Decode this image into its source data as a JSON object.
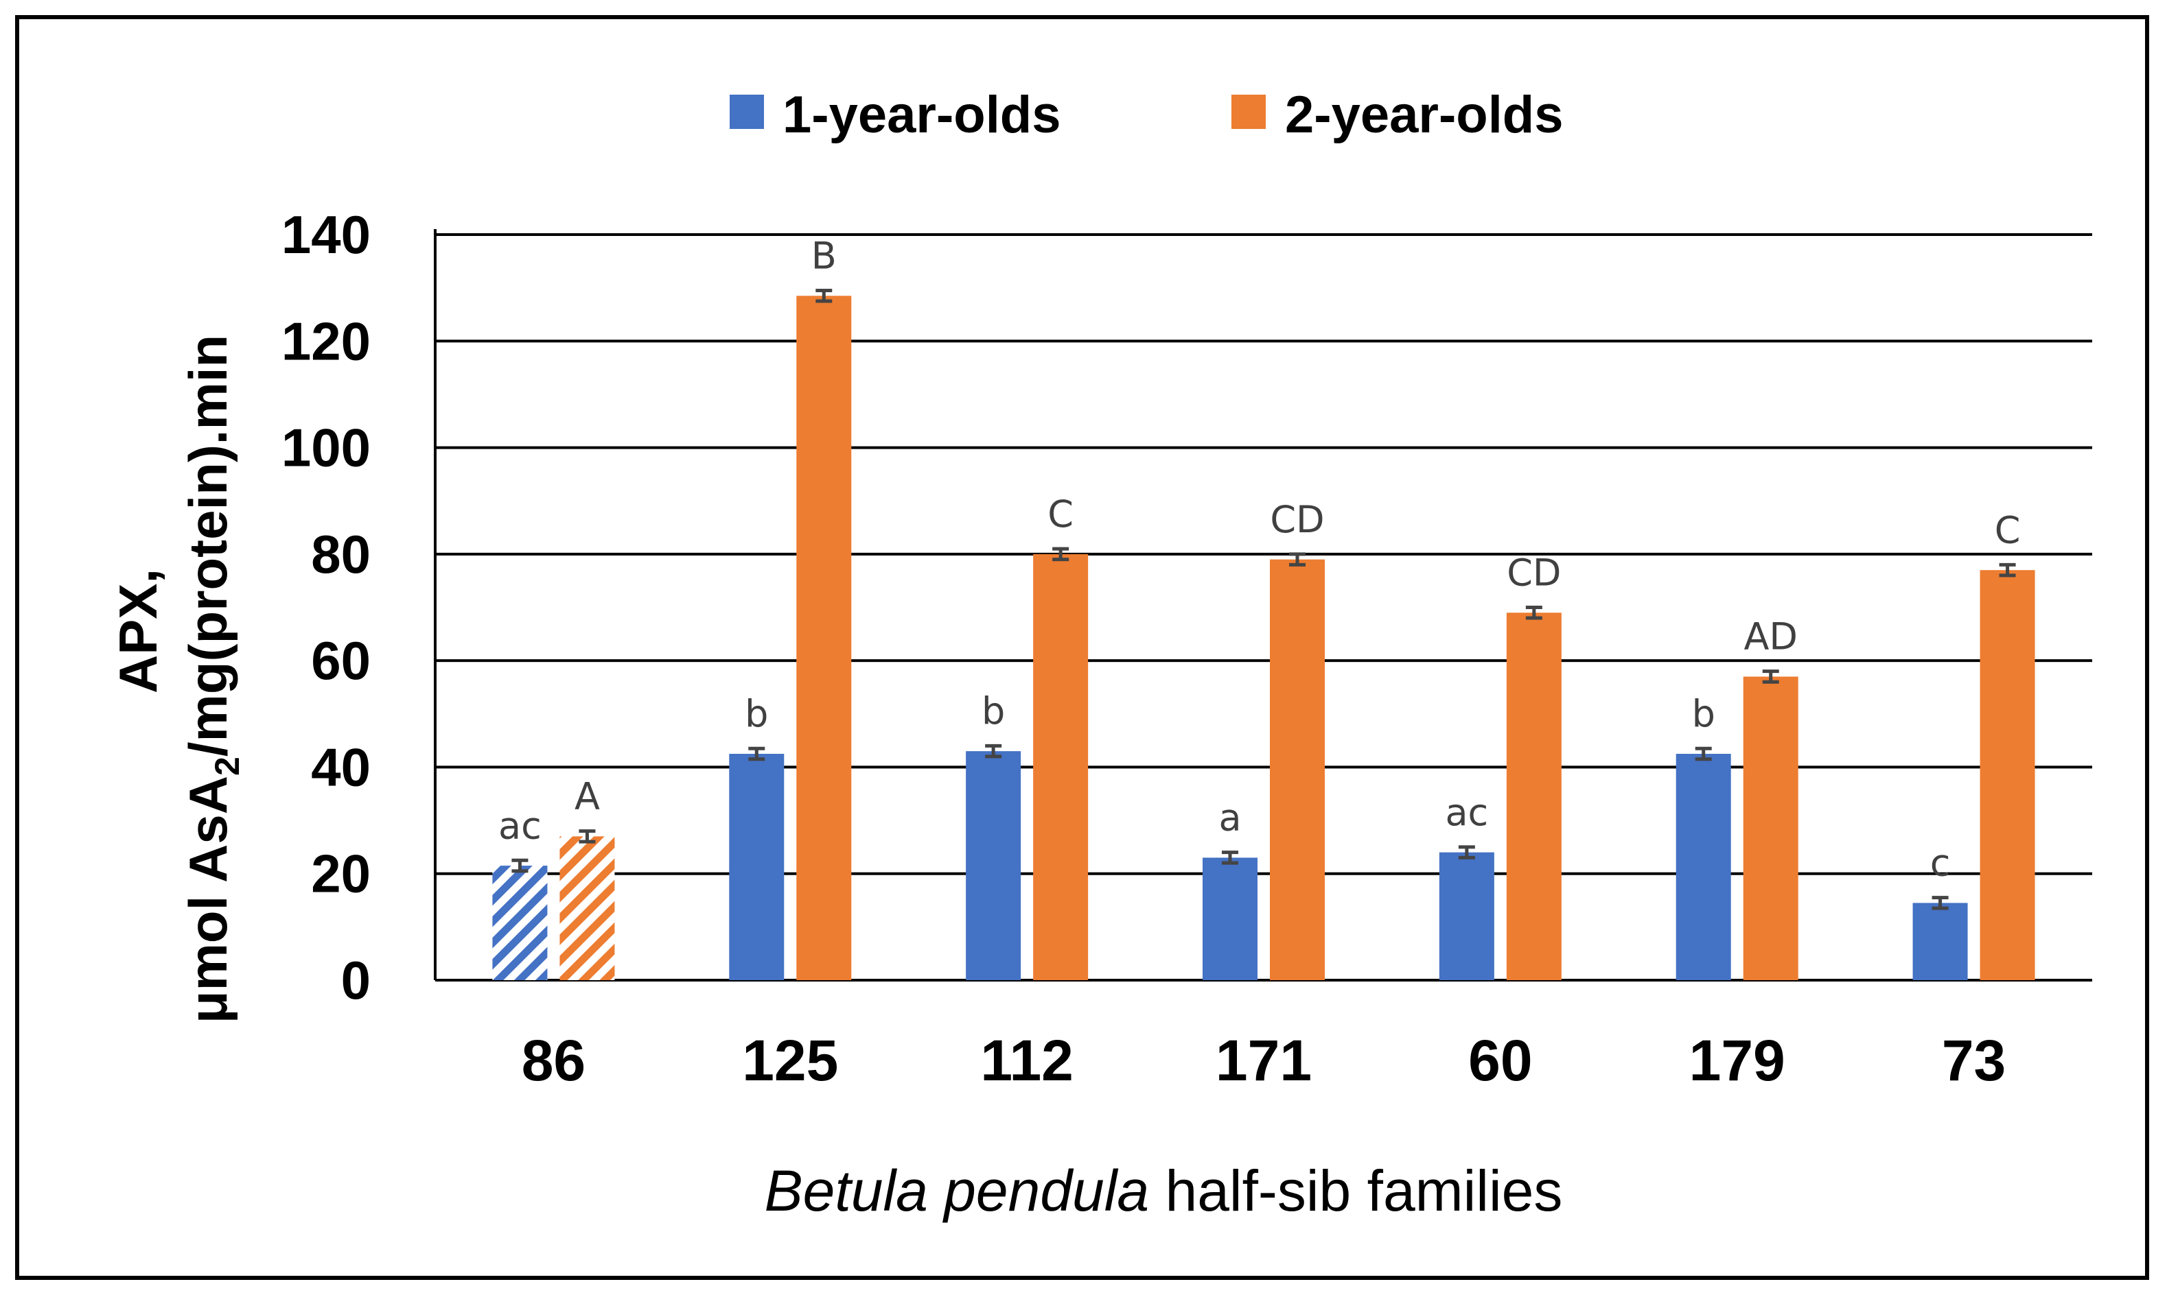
{
  "chart_data": {
    "type": "bar",
    "title": "",
    "ylabel_line1": "APX,",
    "ylabel_line2_pre": "μmol AsA",
    "ylabel_line2_sub": "2",
    "ylabel_line2_post": "/mg(protein).min",
    "xlabel_italic": "Betula pendula",
    "xlabel_rest": " half-sib families",
    "ylim": [
      0,
      140
    ],
    "yticks": [
      0,
      20,
      40,
      60,
      80,
      100,
      120,
      140
    ],
    "grid": true,
    "legend_position": "top-center",
    "categories": [
      "86",
      "125",
      "112",
      "171",
      "60",
      "179",
      "73"
    ],
    "hatched_categories": [
      "86"
    ],
    "series": [
      {
        "name": "1-year-olds",
        "color": "#4472C4",
        "values": [
          21.5,
          42.5,
          43,
          23,
          24,
          42.5,
          14.5
        ],
        "errors": [
          1,
          1,
          1,
          1,
          1,
          1,
          1
        ],
        "letters": [
          "ac",
          "b",
          "b",
          "a",
          "ac",
          "b",
          "c"
        ]
      },
      {
        "name": "2-year-olds",
        "color": "#ED7D31",
        "values": [
          27,
          128.5,
          80,
          79,
          69,
          57,
          77
        ],
        "errors": [
          1,
          1,
          1,
          1,
          1,
          1,
          1
        ],
        "letters": [
          "A",
          "B",
          "C",
          "CD",
          "CD",
          "AD",
          "C"
        ]
      }
    ]
  }
}
